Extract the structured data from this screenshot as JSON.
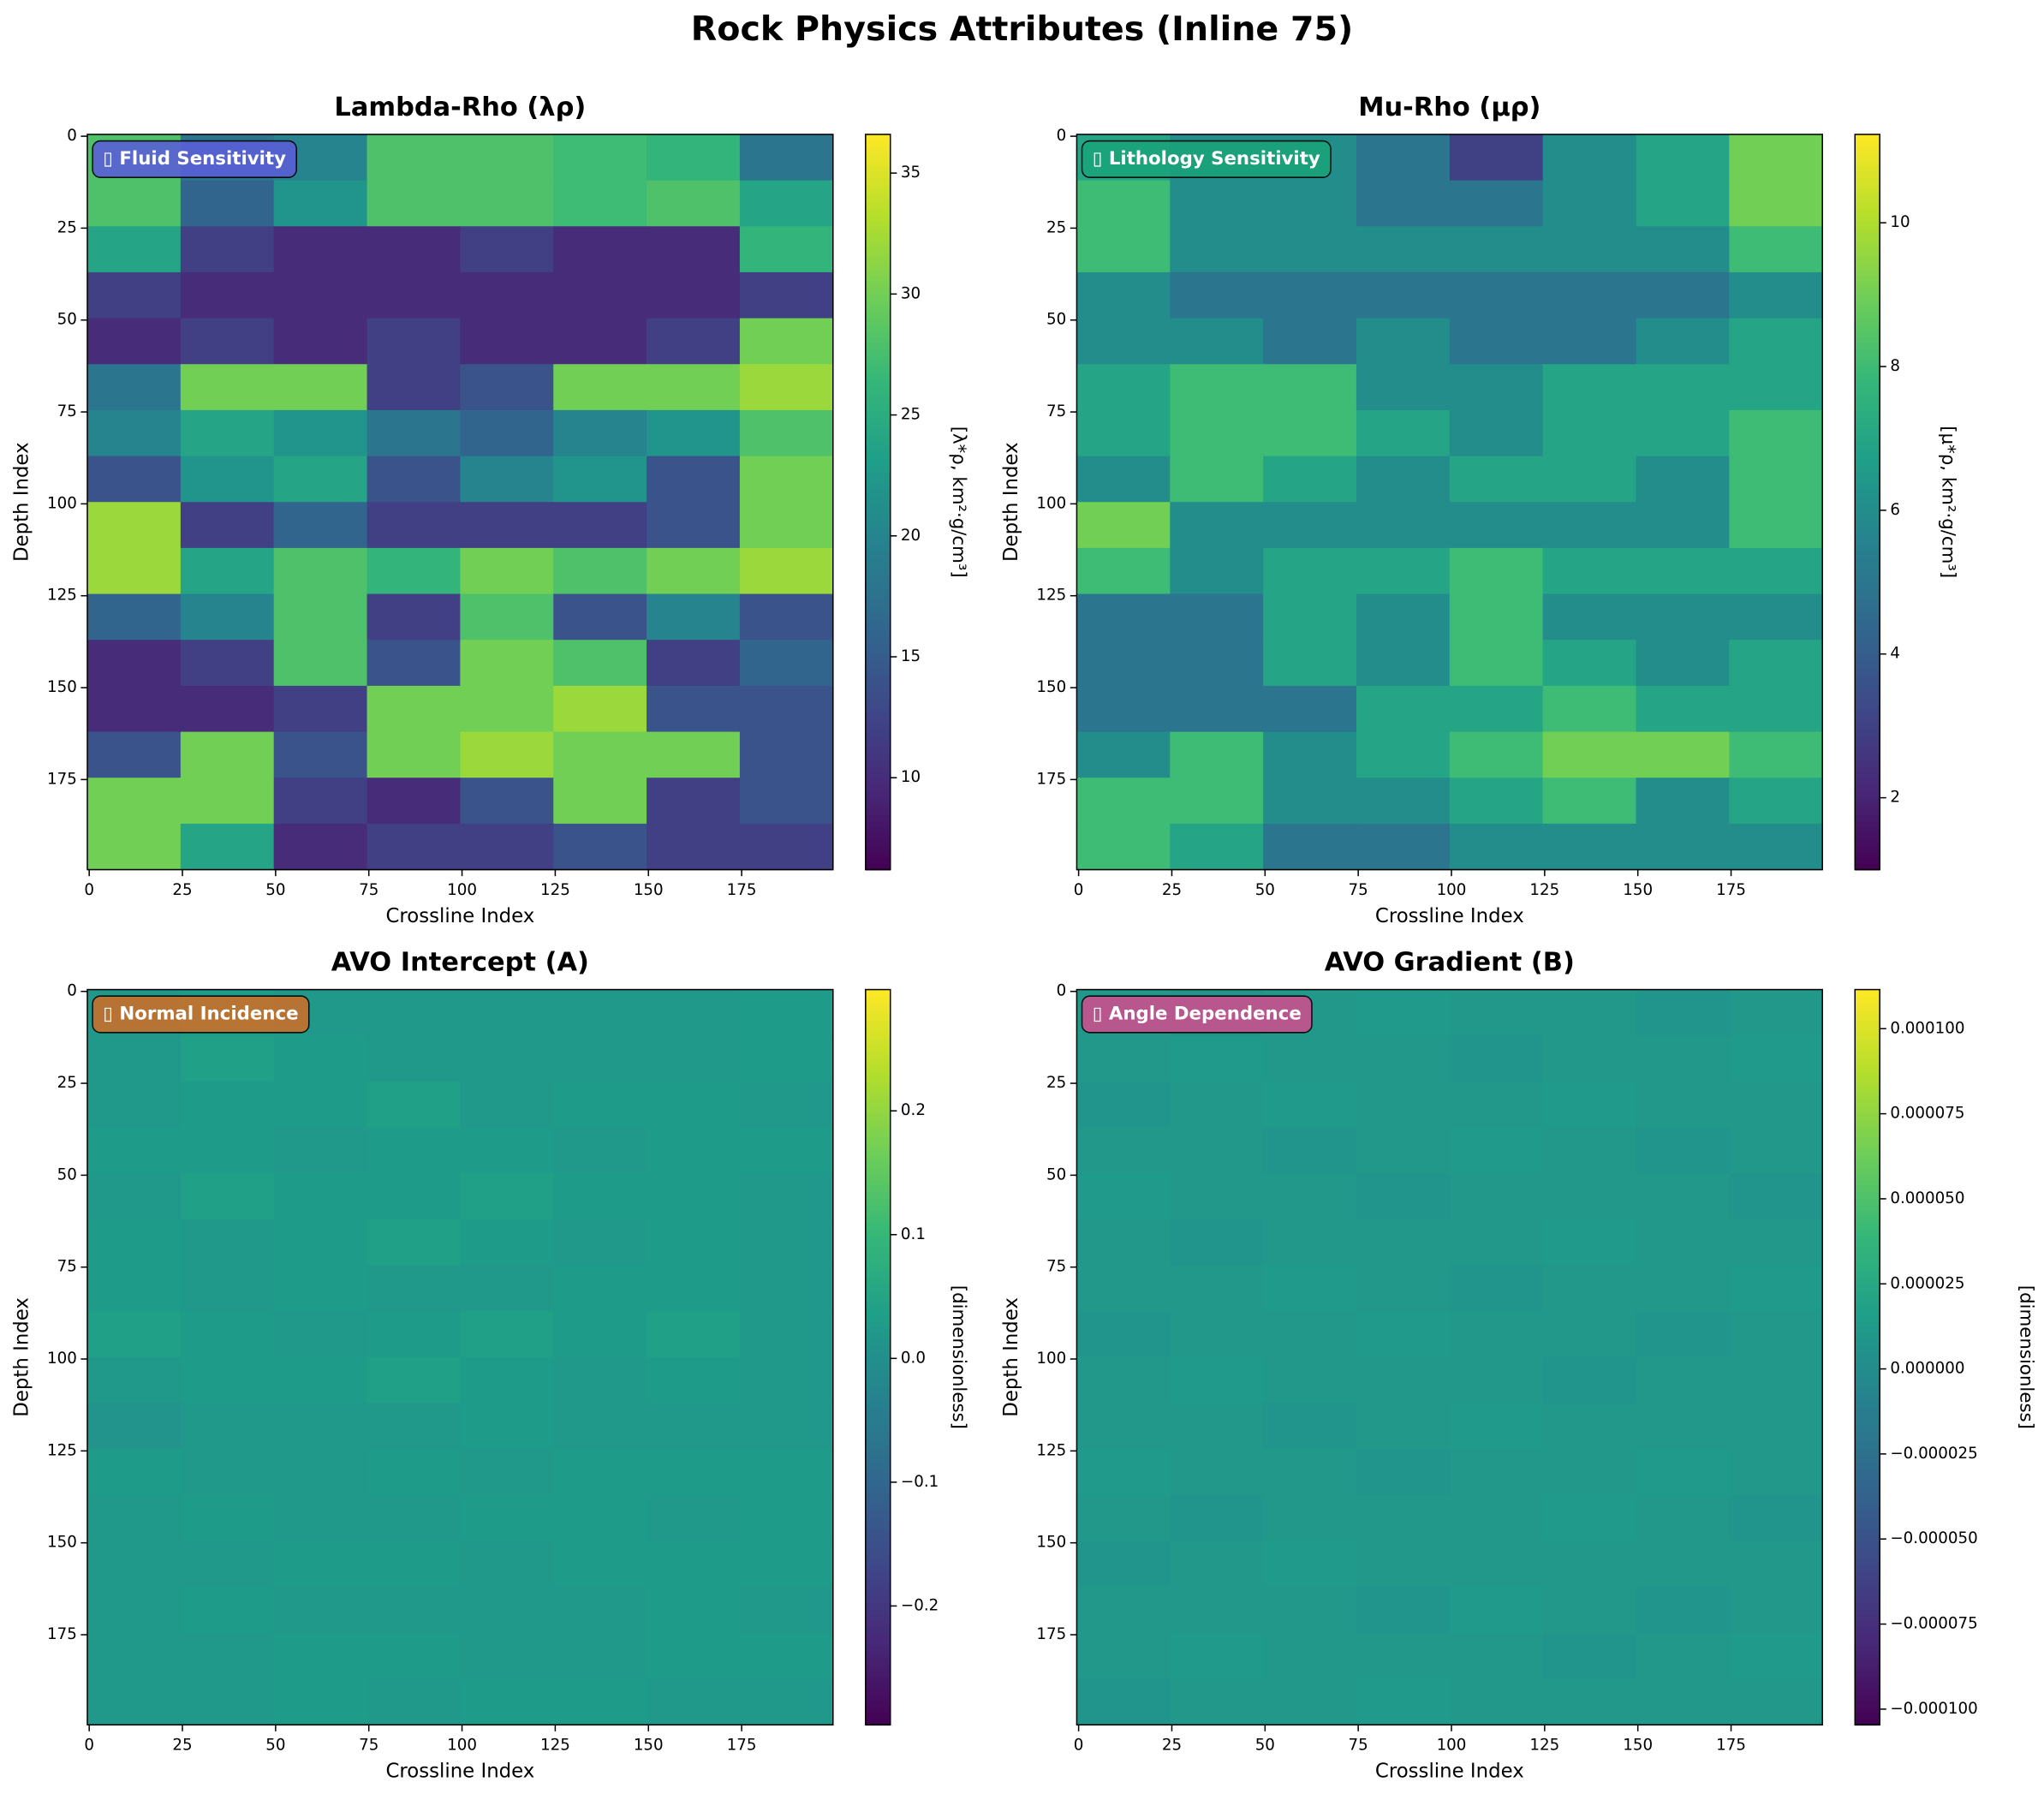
{
  "title": "Rock Physics Attributes (Inline 75)",
  "chart_data": [
    {
      "type": "heatmap",
      "title": "Lambda-Rho (λρ)",
      "badge": "▯ Fluid Sensitivity",
      "badge_color": "#5a5fd6",
      "xlabel": "Crossline Index",
      "ylabel": "Depth Index",
      "colorbar_label": "[λ*ρ, km²·g/cm³]",
      "colormap": "viridis",
      "xlim": [
        -0.5,
        199.5
      ],
      "xticks": [
        0,
        25,
        50,
        75,
        100,
        125,
        150,
        175
      ],
      "ylim": [
        199.5,
        -0.5
      ],
      "yticks": [
        0,
        25,
        50,
        75,
        100,
        125,
        150,
        175
      ],
      "clim": [
        6.2,
        36.6
      ],
      "cticks": [
        10,
        15,
        20,
        25,
        30,
        35
      ],
      "z": [
        [
          28,
          18,
          20,
          28,
          28,
          27,
          26,
          18
        ],
        [
          28,
          16,
          22,
          28,
          28,
          27,
          28,
          24
        ],
        [
          24,
          12,
          10,
          10,
          12,
          10,
          10,
          26
        ],
        [
          12,
          10,
          10,
          10,
          10,
          10,
          10,
          12
        ],
        [
          10,
          12,
          10,
          12,
          10,
          10,
          12,
          30
        ],
        [
          18,
          30,
          30,
          12,
          14,
          30,
          30,
          32
        ],
        [
          20,
          24,
          22,
          18,
          16,
          20,
          22,
          28
        ],
        [
          14,
          22,
          24,
          14,
          20,
          22,
          14,
          30
        ],
        [
          32,
          12,
          16,
          12,
          12,
          12,
          14,
          30
        ],
        [
          32,
          24,
          28,
          26,
          30,
          28,
          30,
          32
        ],
        [
          16,
          20,
          28,
          12,
          28,
          14,
          20,
          14
        ],
        [
          10,
          12,
          28,
          14,
          30,
          28,
          12,
          16
        ],
        [
          10,
          10,
          12,
          30,
          30,
          32,
          14,
          14
        ],
        [
          14,
          30,
          14,
          30,
          32,
          30,
          30,
          14
        ],
        [
          30,
          30,
          12,
          10,
          14,
          30,
          12,
          14
        ],
        [
          30,
          24,
          10,
          12,
          12,
          14,
          12,
          12
        ]
      ]
    },
    {
      "type": "heatmap",
      "title": "Mu-Rho (μρ)",
      "badge": "▯ Lithology Sensitivity",
      "badge_color": "#1aa37a",
      "xlabel": "Crossline Index",
      "ylabel": "Depth Index",
      "colorbar_label": "[μ*ρ, km²·g/cm³]",
      "colormap": "viridis",
      "xlim": [
        -0.5,
        199.5
      ],
      "xticks": [
        0,
        25,
        50,
        75,
        100,
        125,
        150,
        175
      ],
      "ylim": [
        199.5,
        -0.5
      ],
      "yticks": [
        0,
        25,
        50,
        75,
        100,
        125,
        150,
        175
      ],
      "clim": [
        1.0,
        11.23
      ],
      "cticks": [
        2,
        4,
        6,
        8,
        10
      ],
      "z": [
        [
          7,
          6,
          6,
          5,
          3,
          6,
          7,
          9
        ],
        [
          8,
          6,
          6,
          5,
          5,
          6,
          7,
          9
        ],
        [
          8,
          6,
          6,
          6,
          6,
          6,
          6,
          8
        ],
        [
          6,
          5,
          5,
          5,
          5,
          5,
          5,
          6
        ],
        [
          6,
          6,
          5,
          6,
          5,
          5,
          6,
          7
        ],
        [
          7,
          8,
          8,
          6,
          6,
          7,
          7,
          7
        ],
        [
          7,
          8,
          8,
          7,
          6,
          7,
          7,
          8
        ],
        [
          6,
          8,
          7,
          6,
          7,
          7,
          6,
          8
        ],
        [
          9,
          6,
          6,
          6,
          6,
          6,
          6,
          8
        ],
        [
          8,
          6,
          7,
          7,
          8,
          7,
          7,
          7
        ],
        [
          5,
          5,
          7,
          6,
          8,
          6,
          6,
          6
        ],
        [
          5,
          5,
          7,
          6,
          8,
          7,
          6,
          7
        ],
        [
          5,
          5,
          5,
          7,
          7,
          8,
          7,
          7
        ],
        [
          6,
          8,
          6,
          7,
          8,
          9,
          9,
          8
        ],
        [
          8,
          8,
          6,
          6,
          7,
          8,
          6,
          7
        ],
        [
          8,
          7,
          5,
          5,
          6,
          6,
          6,
          6
        ]
      ]
    },
    {
      "type": "heatmap",
      "title": "AVO Intercept (A)",
      "badge": "▯ Normal Incidence",
      "badge_color": "#c8702a",
      "xlabel": "Crossline Index",
      "ylabel": "Depth Index",
      "colorbar_label": "[dimensionless]",
      "colormap": "viridis",
      "xlim": [
        -0.5,
        199.5
      ],
      "xticks": [
        0,
        25,
        50,
        75,
        100,
        125,
        150,
        175
      ],
      "ylim": [
        199.5,
        -0.5
      ],
      "yticks": [
        0,
        25,
        50,
        75,
        100,
        125,
        150,
        175
      ],
      "clim": [
        -0.296,
        0.298
      ],
      "cticks": [
        {
          "value": -0.2,
          "label": "−0.2"
        },
        {
          "value": -0.1,
          "label": "−0.1"
        },
        {
          "value": 0,
          "label": "0.0"
        },
        0.1,
        0.2
      ],
      "z": [
        [
          0.02,
          0.03,
          0.02,
          0.02,
          0.02,
          0.02,
          0.02,
          0.03
        ],
        [
          0.02,
          0.04,
          0.03,
          0.02,
          0.02,
          0.02,
          0.02,
          0.03
        ],
        [
          0.02,
          0.03,
          0.03,
          0.04,
          0.02,
          0.03,
          0.03,
          0.02
        ],
        [
          0.03,
          0.03,
          0.02,
          0.03,
          0.03,
          0.02,
          0.03,
          0.03
        ],
        [
          0.02,
          0.04,
          0.03,
          0.03,
          0.04,
          0.03,
          0.03,
          0.02
        ],
        [
          0.03,
          0.02,
          0.03,
          0.04,
          0.03,
          0.02,
          0.03,
          0.02
        ],
        [
          0.03,
          0.02,
          0.03,
          0.02,
          0.02,
          0.03,
          0.03,
          0.02
        ],
        [
          0.04,
          0.03,
          0.02,
          0.03,
          0.04,
          0.03,
          0.04,
          0.02
        ],
        [
          0.02,
          0.03,
          0.03,
          0.04,
          0.03,
          0.02,
          0.03,
          0.02
        ],
        [
          0.01,
          0.02,
          0.02,
          0.02,
          0.03,
          0.02,
          0.02,
          0.02
        ],
        [
          0.03,
          0.02,
          0.02,
          0.03,
          0.02,
          0.03,
          0.03,
          0.03
        ],
        [
          0.02,
          0.03,
          0.02,
          0.02,
          0.03,
          0.03,
          0.02,
          0.03
        ],
        [
          0.02,
          0.02,
          0.03,
          0.03,
          0.02,
          0.03,
          0.03,
          0.03
        ],
        [
          0.02,
          0.03,
          0.02,
          0.02,
          0.02,
          0.02,
          0.03,
          0.02
        ],
        [
          0.02,
          0.02,
          0.03,
          0.03,
          0.02,
          0.02,
          0.03,
          0.03
        ],
        [
          0.02,
          0.02,
          0.03,
          0.02,
          0.03,
          0.03,
          0.02,
          0.02
        ]
      ]
    },
    {
      "type": "heatmap",
      "title": "AVO Gradient (B)",
      "badge": "▯ Angle Dependence",
      "badge_color": "#c9508f",
      "xlabel": "Crossline Index",
      "ylabel": "Depth Index",
      "colorbar_label": "[dimensionless]",
      "colormap": "viridis",
      "xlim": [
        -0.5,
        199.5
      ],
      "xticks": [
        0,
        25,
        50,
        75,
        100,
        125,
        150,
        175
      ],
      "ylim": [
        199.5,
        -0.5
      ],
      "yticks": [
        0,
        25,
        50,
        75,
        100,
        125,
        150,
        175
      ],
      "clim": [
        -0.0001046,
        0.0001115
      ],
      "cticks": [
        {
          "value": -0.0001,
          "label": "−0.000100"
        },
        {
          "value": -7.5e-05,
          "label": "−0.000075"
        },
        {
          "value": -5e-05,
          "label": "−0.000050"
        },
        {
          "value": -2.5e-05,
          "label": "−0.000025"
        },
        {
          "value": 0,
          "label": "0.000000"
        },
        {
          "value": 2.5e-05,
          "label": "0.000025"
        },
        {
          "value": 5e-05,
          "label": "0.000050"
        },
        {
          "value": 7.5e-05,
          "label": "0.000075"
        },
        {
          "value": 0.0001,
          "label": "0.000100"
        }
      ],
      "z": [
        [
          1e-05,
          8e-06,
          1e-05,
          1.2e-05,
          1e-05,
          1e-05,
          8e-06,
          1e-05
        ],
        [
          1e-05,
          1.2e-05,
          1e-05,
          1e-05,
          8e-06,
          1e-05,
          1e-05,
          1.2e-05
        ],
        [
          8e-06,
          1e-05,
          1.2e-05,
          1e-05,
          1e-05,
          1.2e-05,
          1e-05,
          1e-05
        ],
        [
          1e-05,
          1e-05,
          8e-06,
          1e-05,
          1.2e-05,
          1e-05,
          8e-06,
          1e-05
        ],
        [
          1.2e-05,
          1e-05,
          1e-05,
          8e-06,
          1e-05,
          1e-05,
          1e-05,
          8e-06
        ],
        [
          1e-05,
          8e-06,
          1e-05,
          1e-05,
          1e-05,
          1.2e-05,
          1e-05,
          1e-05
        ],
        [
          1e-05,
          1e-05,
          1.2e-05,
          1e-05,
          8e-06,
          1e-05,
          1e-05,
          1.2e-05
        ],
        [
          8e-06,
          1e-05,
          1e-05,
          1.2e-05,
          1e-05,
          1e-05,
          8e-06,
          1e-05
        ],
        [
          1e-05,
          1.2e-05,
          1e-05,
          1e-05,
          1e-05,
          8e-06,
          1e-05,
          1e-05
        ],
        [
          1e-05,
          1e-05,
          8e-06,
          1e-05,
          1.2e-05,
          1e-05,
          1e-05,
          1e-05
        ],
        [
          1.2e-05,
          1e-05,
          1e-05,
          8e-06,
          1e-05,
          1e-05,
          1.2e-05,
          1e-05
        ],
        [
          1e-05,
          8e-06,
          1e-05,
          1e-05,
          1e-05,
          1.2e-05,
          1e-05,
          8e-06
        ],
        [
          8e-06,
          1e-05,
          1.2e-05,
          1e-05,
          1e-05,
          1e-05,
          1e-05,
          1e-05
        ],
        [
          1e-05,
          1e-05,
          1e-05,
          8e-06,
          1.2e-05,
          1e-05,
          8e-06,
          1e-05
        ],
        [
          1e-05,
          1.2e-05,
          1e-05,
          1e-05,
          1e-05,
          8e-06,
          1e-05,
          1.2e-05
        ],
        [
          8e-06,
          1e-05,
          1e-05,
          1.2e-05,
          1e-05,
          1e-05,
          1e-05,
          1e-05
        ]
      ]
    }
  ]
}
